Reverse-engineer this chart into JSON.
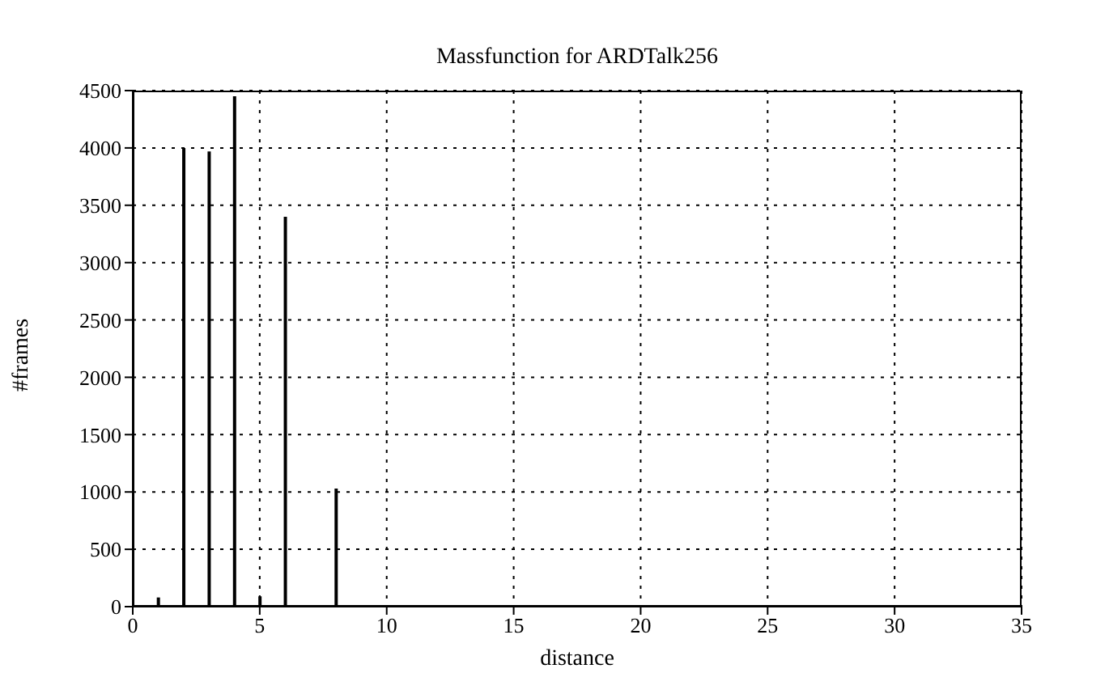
{
  "chart_data": {
    "type": "bar",
    "title": "Massfunction for ARDTalk256",
    "xlabel": "distance",
    "ylabel": "#frames",
    "x": [
      1,
      2,
      3,
      4,
      5,
      6,
      8
    ],
    "values": [
      80,
      4000,
      3970,
      4450,
      90,
      3400,
      1030
    ],
    "color": "#000000",
    "xlim": [
      0,
      35
    ],
    "xticks": [
      0,
      5,
      10,
      15,
      20,
      25,
      30,
      35
    ],
    "ylim": [
      0,
      4500
    ],
    "yticks": [
      0,
      500,
      1000,
      1500,
      2000,
      2500,
      3000,
      3500,
      4000,
      4500
    ],
    "grid": true
  }
}
